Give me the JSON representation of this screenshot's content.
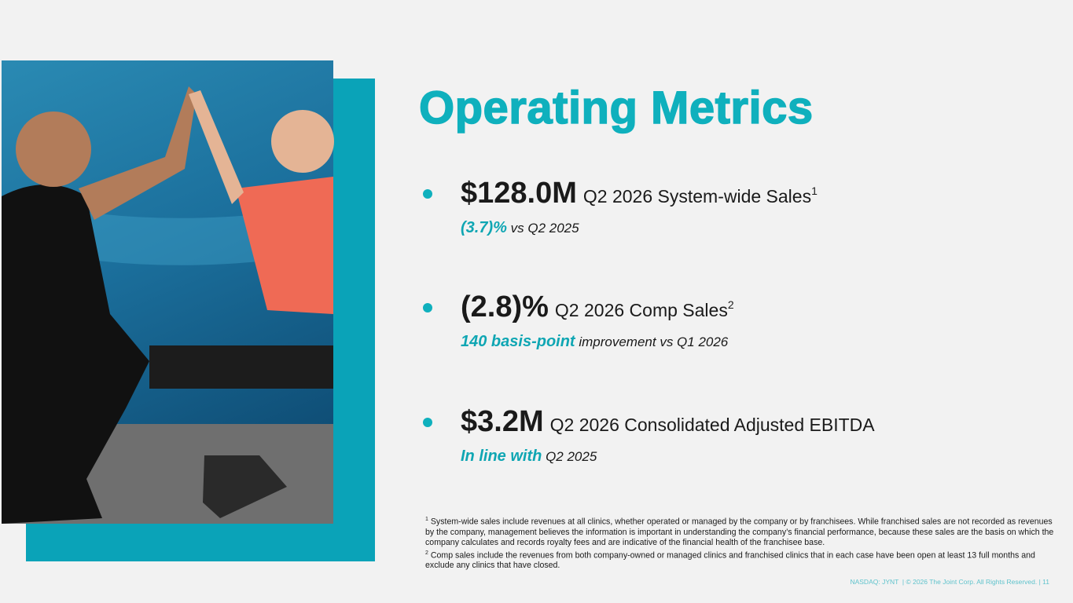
{
  "slide": {
    "title": "Operating Metrics",
    "metrics": [
      {
        "value": "$128.0M",
        "label": "Q2 2026 System-wide Sales",
        "sup": "1",
        "highlight": "(3.7)%",
        "note": "vs Q2 2025"
      },
      {
        "value": "(2.8)%",
        "label": "Q2 2026 Comp Sales",
        "sup": "2",
        "highlight": "140 basis-point",
        "note": "improvement vs Q1 2026"
      },
      {
        "value": "$3.2M",
        "label": "Q2 2026 Consolidated Adjusted EBITDA",
        "highlight": "In line with",
        "note": "Q2 2025"
      }
    ],
    "footnotes": [
      {
        "number": "1",
        "text": "System-wide sales include revenues at all clinics, whether operated or managed by the company or by franchisees. While franchised sales are not recorded as revenues by the company, management believes the information is important in understanding the company’s financial performance, because these sales are the basis on which the company calculates and records royalty fees and are indicative of the financial health of the franchisee base."
      },
      {
        "number": "2",
        "text": "Comp sales include the revenues from both company-owned or managed clinics and franchised clinics that in each case have been open at least 13 full months and exclude any clinics that have closed."
      }
    ],
    "footer": {
      "ticker": "NASDAQ: JYNT",
      "copyright": "| © 2026 The Joint Corp. All Rights Reserved. |",
      "page": "11"
    }
  }
}
